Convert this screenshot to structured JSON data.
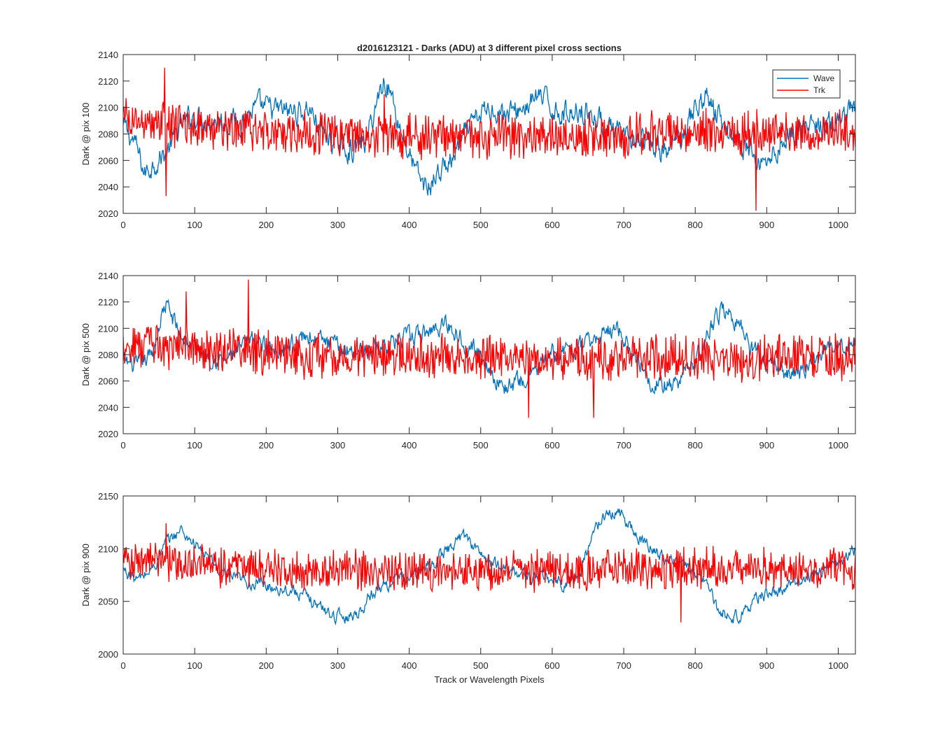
{
  "figure": {
    "title": "d2016123121 - Darks (ADU) at 3 different pixel cross sections",
    "xlabel": "Track or Wavelength Pixels"
  },
  "legend": {
    "entries": [
      {
        "name": "Wave",
        "color": "#0072bd"
      },
      {
        "name": "Trk",
        "color": "#ff0000"
      }
    ],
    "placement": "top-right"
  },
  "chart_data": [
    {
      "type": "line",
      "title": "d2016123121 - Darks (ADU) at 3 different pixel cross sections",
      "xlabel": "",
      "ylabel": "Dark @ pix 100",
      "xlim": [
        0,
        1024
      ],
      "ylim": [
        2020,
        2140
      ],
      "xticks": [
        "0",
        "100",
        "200",
        "300",
        "400",
        "500",
        "600",
        "700",
        "800",
        "900",
        "1000"
      ],
      "yticks": [
        "2020",
        "2040",
        "2060",
        "2080",
        "2100",
        "2120",
        "2140"
      ],
      "grid": false,
      "series": [
        {
          "name": "Wave",
          "color": "#0072bd",
          "noise": 9,
          "x": [
            0,
            15,
            30,
            45,
            60,
            80,
            100,
            130,
            160,
            190,
            220,
            250,
            260,
            280,
            300,
            320,
            340,
            355,
            365,
            375,
            390,
            410,
            425,
            440,
            460,
            480,
            500,
            520,
            540,
            560,
            580,
            600,
            620,
            640,
            660,
            680,
            700,
            720,
            740,
            760,
            780,
            800,
            815,
            830,
            850,
            870,
            890,
            910,
            930,
            950,
            970,
            990,
            1010,
            1024
          ],
          "y": [
            2085,
            2075,
            2050,
            2060,
            2065,
            2085,
            2095,
            2090,
            2090,
            2100,
            2097,
            2097,
            2100,
            2080,
            2072,
            2068,
            2075,
            2105,
            2122,
            2110,
            2080,
            2050,
            2038,
            2050,
            2060,
            2080,
            2095,
            2100,
            2095,
            2100,
            2108,
            2100,
            2095,
            2100,
            2093,
            2085,
            2075,
            2075,
            2070,
            2065,
            2080,
            2100,
            2110,
            2095,
            2080,
            2070,
            2058,
            2065,
            2080,
            2085,
            2085,
            2088,
            2090,
            2100
          ]
        },
        {
          "name": "Trk",
          "color": "#ff0000",
          "noise": 14,
          "x": [
            0,
            100,
            200,
            300,
            400,
            500,
            600,
            700,
            800,
            900,
            1000,
            1024
          ],
          "y": [
            2090,
            2085,
            2082,
            2080,
            2078,
            2078,
            2078,
            2078,
            2082,
            2082,
            2082,
            2075
          ],
          "spikes": [
            [
              58,
              2130
            ],
            [
              60,
              2033
            ],
            [
              365,
              2110
            ],
            [
              885,
              2022
            ]
          ]
        }
      ]
    },
    {
      "type": "line",
      "title": "",
      "xlabel": "",
      "ylabel": "Dark @ pix 500",
      "xlim": [
        0,
        1024
      ],
      "ylim": [
        2020,
        2140
      ],
      "xticks": [
        "0",
        "100",
        "200",
        "300",
        "400",
        "500",
        "600",
        "700",
        "800",
        "900",
        "1000"
      ],
      "yticks": [
        "2020",
        "2040",
        "2060",
        "2080",
        "2100",
        "2120",
        "2140"
      ],
      "grid": false,
      "series": [
        {
          "name": "Wave",
          "color": "#0072bd",
          "noise": 7,
          "x": [
            0,
            20,
            40,
            55,
            60,
            80,
            100,
            140,
            180,
            220,
            260,
            300,
            340,
            380,
            420,
            450,
            470,
            500,
            530,
            560,
            600,
            640,
            670,
            690,
            710,
            740,
            770,
            800,
            820,
            840,
            860,
            880,
            900,
            930,
            960,
            990,
            1024
          ],
          "y": [
            2075,
            2070,
            2080,
            2112,
            2118,
            2095,
            2085,
            2075,
            2090,
            2085,
            2095,
            2085,
            2083,
            2090,
            2095,
            2105,
            2095,
            2080,
            2055,
            2060,
            2080,
            2085,
            2095,
            2102,
            2085,
            2060,
            2055,
            2075,
            2100,
            2115,
            2105,
            2085,
            2075,
            2065,
            2070,
            2085,
            2090
          ]
        },
        {
          "name": "Trk",
          "color": "#ff0000",
          "noise": 14,
          "x": [
            0,
            100,
            200,
            300,
            400,
            500,
            600,
            700,
            800,
            900,
            1000,
            1024
          ],
          "y": [
            2088,
            2085,
            2082,
            2078,
            2078,
            2078,
            2077,
            2077,
            2078,
            2078,
            2080,
            2075
          ],
          "spikes": [
            [
              175,
              2137
            ],
            [
              88,
              2128
            ],
            [
              658,
              2032
            ],
            [
              567,
              2032
            ]
          ]
        }
      ]
    },
    {
      "type": "line",
      "title": "",
      "xlabel": "Track or Wavelength Pixels",
      "ylabel": "Dark @ pix 900",
      "xlim": [
        0,
        1024
      ],
      "ylim": [
        2000,
        2150
      ],
      "xticks": [
        "0",
        "100",
        "200",
        "300",
        "400",
        "500",
        "600",
        "700",
        "800",
        "900",
        "1000"
      ],
      "yticks": [
        "2000",
        "2050",
        "2100",
        "2150"
      ],
      "grid": false,
      "series": [
        {
          "name": "Wave",
          "color": "#0072bd",
          "noise": 6,
          "x": [
            0,
            20,
            40,
            60,
            80,
            100,
            120,
            140,
            160,
            200,
            240,
            270,
            290,
            310,
            330,
            350,
            380,
            410,
            440,
            470,
            480,
            500,
            520,
            560,
            600,
            620,
            640,
            660,
            680,
            700,
            720,
            750,
            780,
            810,
            830,
            850,
            870,
            890,
            920,
            950,
            980,
            1010,
            1024
          ],
          "y": [
            2080,
            2070,
            2080,
            2105,
            2118,
            2105,
            2090,
            2075,
            2070,
            2065,
            2060,
            2048,
            2038,
            2035,
            2040,
            2060,
            2070,
            2075,
            2090,
            2110,
            2112,
            2095,
            2085,
            2075,
            2070,
            2065,
            2080,
            2120,
            2135,
            2132,
            2110,
            2095,
            2085,
            2075,
            2045,
            2035,
            2040,
            2055,
            2060,
            2070,
            2080,
            2090,
            2100
          ]
        },
        {
          "name": "Trk",
          "color": "#ff0000",
          "noise": 16,
          "x": [
            0,
            100,
            200,
            300,
            400,
            500,
            600,
            700,
            800,
            900,
            1000,
            1024
          ],
          "y": [
            2090,
            2085,
            2082,
            2080,
            2078,
            2078,
            2078,
            2080,
            2082,
            2082,
            2080,
            2075
          ],
          "spikes": [
            [
              60,
              2124
            ],
            [
              780,
              2030
            ]
          ]
        }
      ]
    }
  ]
}
